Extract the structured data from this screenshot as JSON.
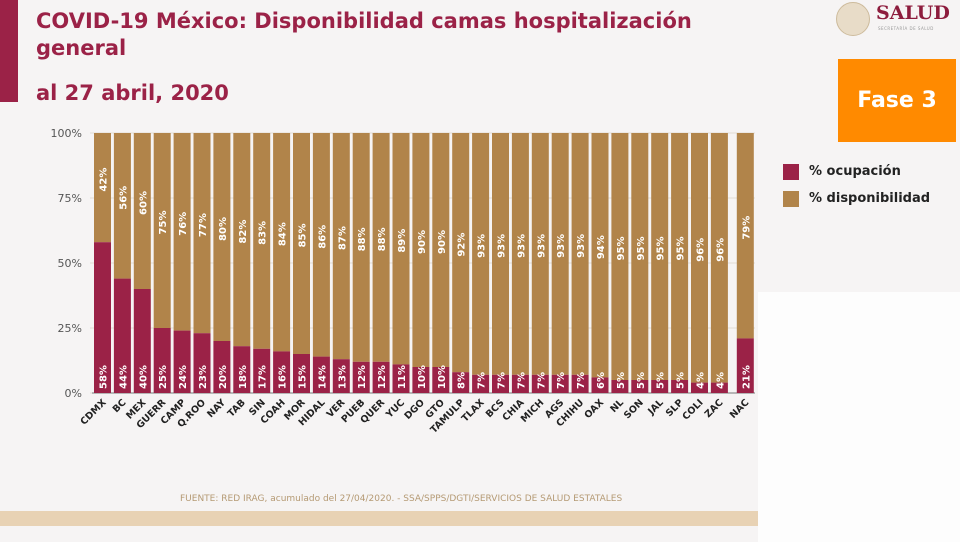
{
  "header": {
    "title": "COVID-19 México: Disponibilidad camas hospitalización general",
    "subtitle": "al 27 abril, 2020",
    "logo_text": "SALUD",
    "logo_subtext": "SECRETARÍA DE SALUD",
    "phase_badge": "Fase 3"
  },
  "footer": {
    "source": "FUENTE: RED IRAG, acumulado del 27/04/2020. -  SSA/SPPS/DGTI/SERVICIOS DE SALUD ESTATALES"
  },
  "colors": {
    "ocupacion": "#9b2247",
    "disponibilidad": "#b1844a",
    "phase_badge": "#ff8a00"
  },
  "chart_data": {
    "type": "bar",
    "stacked": true,
    "title": "",
    "xlabel": "",
    "ylabel": "",
    "ylim": [
      0,
      100
    ],
    "yticks": [
      "0%",
      "25%",
      "50%",
      "75%",
      "100%"
    ],
    "grid": true,
    "legend_position": "right",
    "categories": [
      "CDMX",
      "BC",
      "MEX",
      "GUERR",
      "CAMP",
      "Q.ROO",
      "NAY",
      "TAB",
      "SIN",
      "COAH",
      "MOR",
      "HIDAL",
      "VER",
      "PUEB",
      "QUER",
      "YUC",
      "DGO",
      "GTO",
      "TAMULP",
      "TLAX",
      "BCS",
      "CHIA",
      "MICH",
      "AGS",
      "CHIHU",
      "OAX",
      "NL",
      "SON",
      "JAL",
      "SLP",
      "COLI",
      "ZAC",
      "NAC"
    ],
    "series": [
      {
        "name": "% ocupación",
        "color": "#9b2247",
        "values": [
          58,
          44,
          40,
          25,
          24,
          23,
          20,
          18,
          17,
          16,
          15,
          14,
          13,
          12,
          12,
          11,
          10,
          10,
          8,
          7,
          7,
          7,
          7,
          7,
          7,
          6,
          5,
          5,
          5,
          5,
          4,
          4,
          21
        ]
      },
      {
        "name": "% disponibilidad",
        "color": "#b1844a",
        "values": [
          42,
          56,
          60,
          75,
          76,
          77,
          80,
          82,
          83,
          84,
          85,
          86,
          87,
          88,
          88,
          89,
          90,
          90,
          92,
          93,
          93,
          93,
          93,
          93,
          93,
          94,
          95,
          95,
          95,
          95,
          96,
          96,
          79
        ]
      }
    ]
  }
}
